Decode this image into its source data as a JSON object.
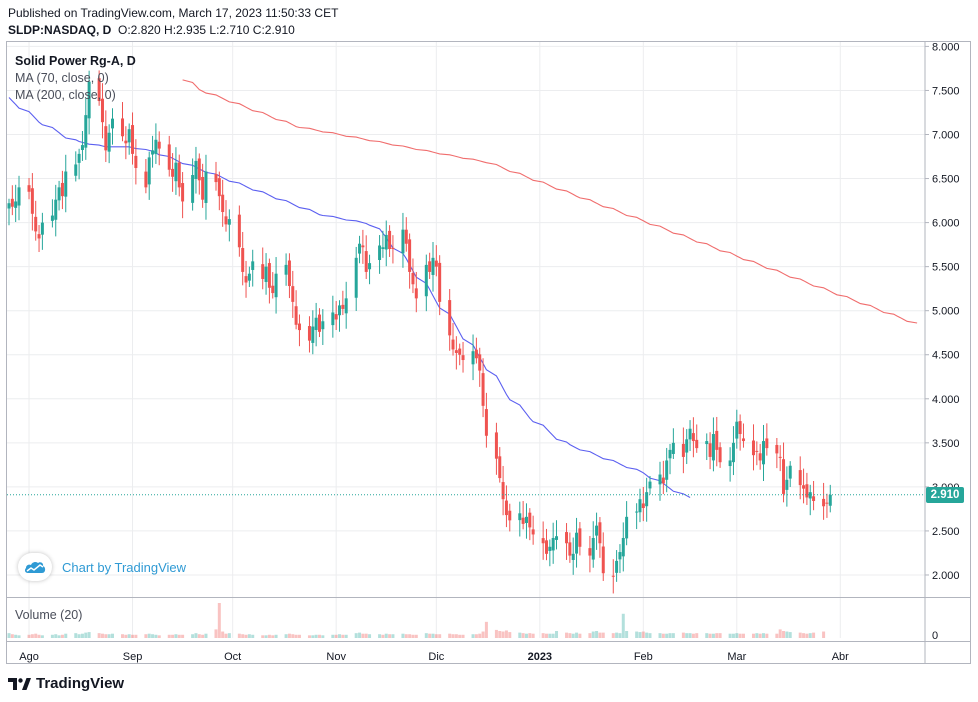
{
  "header": {
    "published": "Published on TradingView.com, March 17, 2023 11:50:33 CET",
    "symbol": "SLDP:NASDAQ, D",
    "ohlc": "O:2.820 H:2.935 L:2.710 C:2.910"
  },
  "legend": {
    "title": "Solid Power Rg-A, D",
    "ma70": "MA (70, close, 0)",
    "ma200": "MA (200, close, 0)"
  },
  "volume_pane": {
    "title": "Volume (20)",
    "axis_label": "0"
  },
  "watermark": {
    "text": "Chart by TradingView"
  },
  "brand": {
    "name": "TradingView"
  },
  "last_price": "2.910",
  "colors": {
    "up": "#26a69a",
    "down": "#ef5350",
    "ma70": "#5b5ff0",
    "ma200": "#f06d6d",
    "grid": "#ecedef",
    "axis_text": "#131722",
    "last_line": "#26a69a"
  },
  "chart_data": {
    "type": "candlestick",
    "title": "Solid Power Rg-A, D",
    "ylim": [
      1.75,
      8.05
    ],
    "y_ticks": [
      "8.000",
      "7.500",
      "7.000",
      "6.500",
      "6.000",
      "5.500",
      "5.000",
      "4.500",
      "4.000",
      "3.500",
      "3.000",
      "2.500",
      "2.000"
    ],
    "x_ticks": [
      "Ago",
      "Sep",
      "Oct",
      "Nov",
      "Dic",
      "2023",
      "Feb",
      "Mar",
      "Abr"
    ],
    "price": {
      "from": "2022-07-26",
      "closes": [
        6.22,
        6.18,
        6.24,
        6.4,
        6.35,
        6.1,
        5.9,
        5.82,
        6.0,
        6.08,
        6.26,
        6.4,
        6.3,
        6.58,
        6.66,
        6.78,
        6.88,
        7.22,
        7.6,
        7.38,
        7.14,
        6.82,
        7.02,
        7.18,
        6.98,
        6.9,
        7.06,
        6.78,
        6.62,
        6.4,
        6.74,
        6.82,
        6.94,
        6.84,
        6.6,
        6.52,
        6.68,
        6.4,
        6.24,
        6.54,
        6.7,
        6.48,
        6.26,
        6.58,
        6.46,
        6.3,
        6.12,
        5.98,
        6.04,
        5.72,
        5.44,
        5.32,
        5.42,
        5.56,
        5.36,
        5.5,
        5.26,
        5.2,
        5.42,
        5.52,
        5.28,
        5.1,
        4.84,
        4.78,
        4.66,
        4.82,
        4.92,
        4.76,
        4.88,
        4.98,
        4.9,
        5.06,
        5.02,
        5.14,
        5.6,
        5.76,
        5.72,
        5.44,
        5.54,
        5.74,
        5.72,
        5.86,
        5.7,
        5.7,
        5.92,
        5.76,
        5.44,
        5.3,
        5.14,
        5.52,
        5.44,
        5.6,
        5.5,
        5.1,
        4.72,
        4.56,
        4.52,
        4.5,
        4.44,
        4.54,
        4.46,
        4.32,
        3.92,
        3.58,
        3.32,
        3.1,
        2.86,
        2.68,
        2.62,
        2.7,
        2.58,
        2.66,
        2.54,
        2.46,
        2.36,
        2.24,
        2.32,
        2.42,
        2.44,
        2.36,
        2.22,
        2.24,
        2.48,
        2.32,
        2.22,
        2.42,
        2.56,
        2.36,
        2.02,
        1.98,
        2.16,
        2.26,
        2.42,
        2.66,
        2.72,
        2.86,
        2.76,
        2.94,
        3.06,
        3.14,
        3.04,
        3.3,
        3.42,
        3.5,
        3.34,
        3.54,
        3.66,
        3.52,
        3.44,
        3.52,
        3.34,
        3.6,
        3.42,
        3.28,
        3.3,
        3.5,
        3.74,
        3.6,
        3.52,
        3.36,
        3.4,
        3.3,
        3.52,
        3.44,
        3.38,
        3.34,
        2.92,
        3.08,
        3.24,
        3.02,
        2.98,
        2.88,
        2.94,
        2.84,
        2.78,
        2.82,
        2.91
      ]
    },
    "ma70": {
      "from": "2022-07-26",
      "values": [
        7.42,
        7.38,
        7.34,
        7.3,
        7.26,
        7.22,
        7.18,
        7.14,
        7.11,
        7.08,
        7.05,
        7.02,
        6.99,
        6.96,
        6.94,
        6.92,
        6.91,
        6.9,
        6.89,
        6.88,
        6.87,
        6.86,
        6.86,
        6.86,
        6.86,
        6.86,
        6.86,
        6.85,
        6.84,
        6.83,
        6.82,
        6.81,
        6.79,
        6.77,
        6.75,
        6.73,
        6.71,
        6.69,
        6.67,
        6.65,
        6.63,
        6.61,
        6.59,
        6.57,
        6.55,
        6.53,
        6.51,
        6.49,
        6.47,
        6.45,
        6.43,
        6.41,
        6.39,
        6.37,
        6.35,
        6.33,
        6.31,
        6.29,
        6.27,
        6.25,
        6.23,
        6.21,
        6.19,
        6.17,
        6.15,
        6.13,
        6.11,
        6.09,
        6.08,
        6.07,
        6.06,
        6.05,
        6.04,
        6.03,
        6.02,
        6.01,
        6.0,
        5.99,
        5.97,
        5.93,
        5.88,
        5.83,
        5.77,
        5.71,
        5.65,
        5.59,
        5.52,
        5.45,
        5.38,
        5.31,
        5.24,
        5.17,
        5.1,
        5.03,
        4.96,
        4.89,
        4.82,
        4.75,
        4.68,
        4.61,
        4.54,
        4.47,
        4.4,
        4.33,
        4.26,
        4.19,
        4.12,
        4.05,
        3.99,
        3.93,
        3.88,
        3.83,
        3.78,
        3.74,
        3.7,
        3.66,
        3.62,
        3.58,
        3.54,
        3.51,
        3.48,
        3.46,
        3.44,
        3.42,
        3.4,
        3.38,
        3.36,
        3.34,
        3.32,
        3.3,
        3.28,
        3.26,
        3.24,
        3.22,
        3.2,
        3.18,
        3.16,
        3.13,
        3.1,
        3.07,
        3.04,
        3.01,
        2.98,
        2.95,
        2.92,
        2.9,
        2.88
      ]
    },
    "ma200": {
      "from": "2022-09-16",
      "values": [
        7.62,
        7.59,
        7.55,
        7.51,
        7.49,
        7.47,
        7.45,
        7.43,
        7.41,
        7.39,
        7.37,
        7.35,
        7.33,
        7.31,
        7.29,
        7.27,
        7.25,
        7.23,
        7.21,
        7.19,
        7.17,
        7.15,
        7.13,
        7.11,
        7.09,
        7.08,
        7.07,
        7.06,
        7.05,
        7.04,
        7.03,
        7.02,
        7.01,
        7.0,
        6.99,
        6.98,
        6.97,
        6.96,
        6.95,
        6.94,
        6.93,
        6.92,
        6.91,
        6.9,
        6.89,
        6.88,
        6.87,
        6.86,
        6.85,
        6.84,
        6.83,
        6.82,
        6.81,
        6.8,
        6.79,
        6.78,
        6.77,
        6.76,
        6.75,
        6.74,
        6.73,
        6.72,
        6.71,
        6.7,
        6.69,
        6.68,
        6.66,
        6.64,
        6.62,
        6.6,
        6.58,
        6.56,
        6.54,
        6.52,
        6.5,
        6.48,
        6.46,
        6.44,
        6.42,
        6.4,
        6.38,
        6.36,
        6.34,
        6.32,
        6.3,
        6.28,
        6.26,
        6.24,
        6.22,
        6.2,
        6.18,
        6.16,
        6.14,
        6.12,
        6.1,
        6.08,
        6.06,
        6.04,
        6.02,
        6.0,
        5.98,
        5.96,
        5.94,
        5.92,
        5.9,
        5.88,
        5.86,
        5.84,
        5.82,
        5.8,
        5.78,
        5.76,
        5.74,
        5.72,
        5.7,
        5.68,
        5.66,
        5.64,
        5.62,
        5.6,
        5.58,
        5.56,
        5.54,
        5.52,
        5.5,
        5.48,
        5.46,
        5.44,
        5.42,
        5.4,
        5.38,
        5.36,
        5.34,
        5.32,
        5.3,
        5.28,
        5.26,
        5.24,
        5.22,
        5.2,
        5.18,
        5.16,
        5.14,
        5.12,
        5.1,
        5.08,
        5.06,
        5.04,
        5.02,
        5.0,
        4.98,
        4.96,
        4.94,
        4.92,
        4.9,
        4.88,
        4.86
      ]
    },
    "volume": {
      "from": "2022-07-26",
      "values": [
        0.9,
        0.7,
        0.6,
        0.5,
        0.6,
        0.7,
        0.8,
        0.6,
        0.5,
        0.6,
        0.7,
        0.5,
        0.6,
        0.8,
        0.9,
        0.7,
        0.8,
        1.0,
        1.1,
        0.9,
        0.8,
        0.7,
        0.7,
        0.8,
        0.7,
        0.6,
        0.7,
        0.6,
        0.6,
        0.7,
        0.8,
        0.7,
        0.6,
        0.5,
        0.6,
        0.6,
        0.7,
        0.6,
        0.6,
        0.7,
        0.9,
        0.7,
        0.6,
        0.8,
        1.6,
        6.5,
        1.2,
        0.8,
        0.9,
        0.8,
        0.7,
        0.6,
        0.7,
        0.6,
        0.5,
        0.5,
        0.6,
        0.5,
        0.6,
        0.7,
        0.8,
        0.7,
        0.6,
        0.6,
        0.5,
        0.5,
        0.6,
        0.6,
        0.5,
        0.6,
        0.6,
        0.7,
        0.6,
        0.6,
        0.9,
        1.0,
        0.8,
        0.8,
        0.7,
        0.7,
        0.6,
        0.8,
        0.7,
        0.7,
        0.8,
        0.7,
        0.7,
        0.6,
        0.6,
        0.9,
        0.8,
        0.8,
        0.7,
        0.7,
        0.8,
        0.7,
        0.7,
        0.6,
        0.6,
        0.7,
        0.7,
        0.8,
        1.2,
        3.0,
        1.5,
        1.3,
        1.2,
        1.4,
        1.1,
        1.0,
        0.9,
        0.8,
        0.9,
        0.8,
        0.9,
        0.8,
        0.8,
        0.8,
        1.3,
        1.0,
        0.9,
        0.8,
        1.0,
        0.8,
        0.9,
        1.2,
        1.3,
        1.0,
        1.0,
        0.9,
        1.0,
        0.9,
        4.5,
        1.3,
        1.2,
        1.1,
        1.2,
        1.0,
        0.9,
        0.9,
        0.8,
        0.8,
        0.9,
        0.9,
        1.0,
        0.9,
        0.9,
        0.8,
        0.9,
        0.9,
        0.8,
        0.8,
        0.9,
        0.9,
        0.8,
        0.8,
        0.9,
        0.8,
        0.8,
        0.8,
        0.9,
        0.8,
        0.9,
        0.8,
        0.8,
        1.6,
        1.3,
        1.2,
        1.1,
        1.0,
        0.9,
        0.8,
        0.9,
        1.0,
        1.2
      ]
    }
  }
}
